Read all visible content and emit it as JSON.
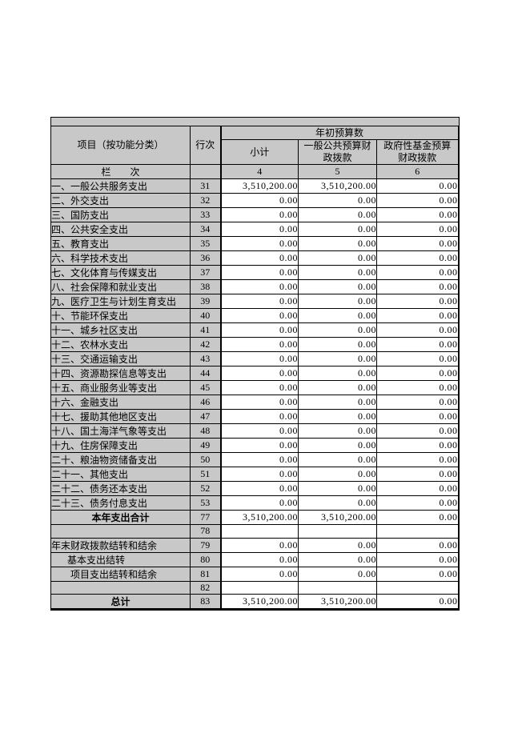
{
  "colors": {
    "cell_gray": "#c8c8c8",
    "cell_white": "#ffffff",
    "border": "#000000",
    "page_background": "#ffffff"
  },
  "table": {
    "header": {
      "col_item": "项目（按功能分类）",
      "col_rowno": "行次",
      "group_budget": "年初预算数",
      "sub_subtotal": "小计",
      "sub_general": "一般公共预算财政拨款",
      "sub_govfund": "政府性基金预算财政拨款",
      "lane_label": "栏　　次",
      "lane_numbers": [
        "4",
        "5",
        "6"
      ]
    },
    "rows": [
      {
        "item": "一、一般公共服务支出",
        "row_no": "31",
        "subtotal": "3,510,200.00",
        "general": "3,510,200.00",
        "govfund": "0.00",
        "style": "normal"
      },
      {
        "item": "二、外交支出",
        "row_no": "32",
        "subtotal": "0.00",
        "general": "0.00",
        "govfund": "0.00",
        "style": "normal"
      },
      {
        "item": "三、国防支出",
        "row_no": "33",
        "subtotal": "0.00",
        "general": "0.00",
        "govfund": "0.00",
        "style": "normal"
      },
      {
        "item": "四、公共安全支出",
        "row_no": "34",
        "subtotal": "0.00",
        "general": "0.00",
        "govfund": "0.00",
        "style": "normal"
      },
      {
        "item": "五、教育支出",
        "row_no": "35",
        "subtotal": "0.00",
        "general": "0.00",
        "govfund": "0.00",
        "style": "normal"
      },
      {
        "item": "六、科学技术支出",
        "row_no": "36",
        "subtotal": "0.00",
        "general": "0.00",
        "govfund": "0.00",
        "style": "normal"
      },
      {
        "item": "七、文化体育与传媒支出",
        "row_no": "37",
        "subtotal": "0.00",
        "general": "0.00",
        "govfund": "0.00",
        "style": "normal"
      },
      {
        "item": "八、社会保障和就业支出",
        "row_no": "38",
        "subtotal": "0.00",
        "general": "0.00",
        "govfund": "0.00",
        "style": "normal"
      },
      {
        "item": "九、医疗卫生与计划生育支出",
        "row_no": "39",
        "subtotal": "0.00",
        "general": "0.00",
        "govfund": "0.00",
        "style": "normal"
      },
      {
        "item": "十、节能环保支出",
        "row_no": "40",
        "subtotal": "0.00",
        "general": "0.00",
        "govfund": "0.00",
        "style": "normal"
      },
      {
        "item": "十一、城乡社区支出",
        "row_no": "41",
        "subtotal": "0.00",
        "general": "0.00",
        "govfund": "0.00",
        "style": "normal"
      },
      {
        "item": "十二、农林水支出",
        "row_no": "42",
        "subtotal": "0.00",
        "general": "0.00",
        "govfund": "0.00",
        "style": "normal"
      },
      {
        "item": "十三、交通运输支出",
        "row_no": "43",
        "subtotal": "0.00",
        "general": "0.00",
        "govfund": "0.00",
        "style": "normal"
      },
      {
        "item": "十四、资源勘探信息等支出",
        "row_no": "44",
        "subtotal": "0.00",
        "general": "0.00",
        "govfund": "0.00",
        "style": "normal"
      },
      {
        "item": "十五、商业服务业等支出",
        "row_no": "45",
        "subtotal": "0.00",
        "general": "0.00",
        "govfund": "0.00",
        "style": "normal"
      },
      {
        "item": "十六、金融支出",
        "row_no": "46",
        "subtotal": "0.00",
        "general": "0.00",
        "govfund": "0.00",
        "style": "normal"
      },
      {
        "item": "十七、援助其他地区支出",
        "row_no": "47",
        "subtotal": "0.00",
        "general": "0.00",
        "govfund": "0.00",
        "style": "normal"
      },
      {
        "item": "十八、国土海洋气象等支出",
        "row_no": "48",
        "subtotal": "0.00",
        "general": "0.00",
        "govfund": "0.00",
        "style": "normal"
      },
      {
        "item": "十九、住房保障支出",
        "row_no": "49",
        "subtotal": "0.00",
        "general": "0.00",
        "govfund": "0.00",
        "style": "normal"
      },
      {
        "item": "二十、粮油物资储备支出",
        "row_no": "50",
        "subtotal": "0.00",
        "general": "0.00",
        "govfund": "0.00",
        "style": "normal"
      },
      {
        "item": "二十一、其他支出",
        "row_no": "51",
        "subtotal": "0.00",
        "general": "0.00",
        "govfund": "0.00",
        "style": "normal"
      },
      {
        "item": "二十二、债务还本支出",
        "row_no": "52",
        "subtotal": "0.00",
        "general": "0.00",
        "govfund": "0.00",
        "style": "normal"
      },
      {
        "item": "二十三、债务付息支出",
        "row_no": "53",
        "subtotal": "0.00",
        "general": "0.00",
        "govfund": "0.00",
        "style": "normal"
      },
      {
        "item": "本年支出合计",
        "row_no": "77",
        "subtotal": "3,510,200.00",
        "general": "3,510,200.00",
        "govfund": "0.00",
        "style": "total"
      },
      {
        "item": "",
        "row_no": "78",
        "subtotal": "",
        "general": "",
        "govfund": "",
        "style": "blank"
      },
      {
        "item": "年末财政拨款结转和结余",
        "row_no": "79",
        "subtotal": "0.00",
        "general": "0.00",
        "govfund": "0.00",
        "style": "normal"
      },
      {
        "item": "基本支出结转",
        "row_no": "80",
        "subtotal": "0.00",
        "general": "0.00",
        "govfund": "0.00",
        "style": "indent1"
      },
      {
        "item": "项目支出结转和结余",
        "row_no": "81",
        "subtotal": "0.00",
        "general": "0.00",
        "govfund": "0.00",
        "style": "indent2"
      },
      {
        "item": "",
        "row_no": "82",
        "subtotal": "",
        "general": "",
        "govfund": "",
        "style": "blank"
      },
      {
        "item": "总计",
        "row_no": "83",
        "subtotal": "3,510,200.00",
        "general": "3,510,200.00",
        "govfund": "0.00",
        "style": "total"
      }
    ]
  }
}
